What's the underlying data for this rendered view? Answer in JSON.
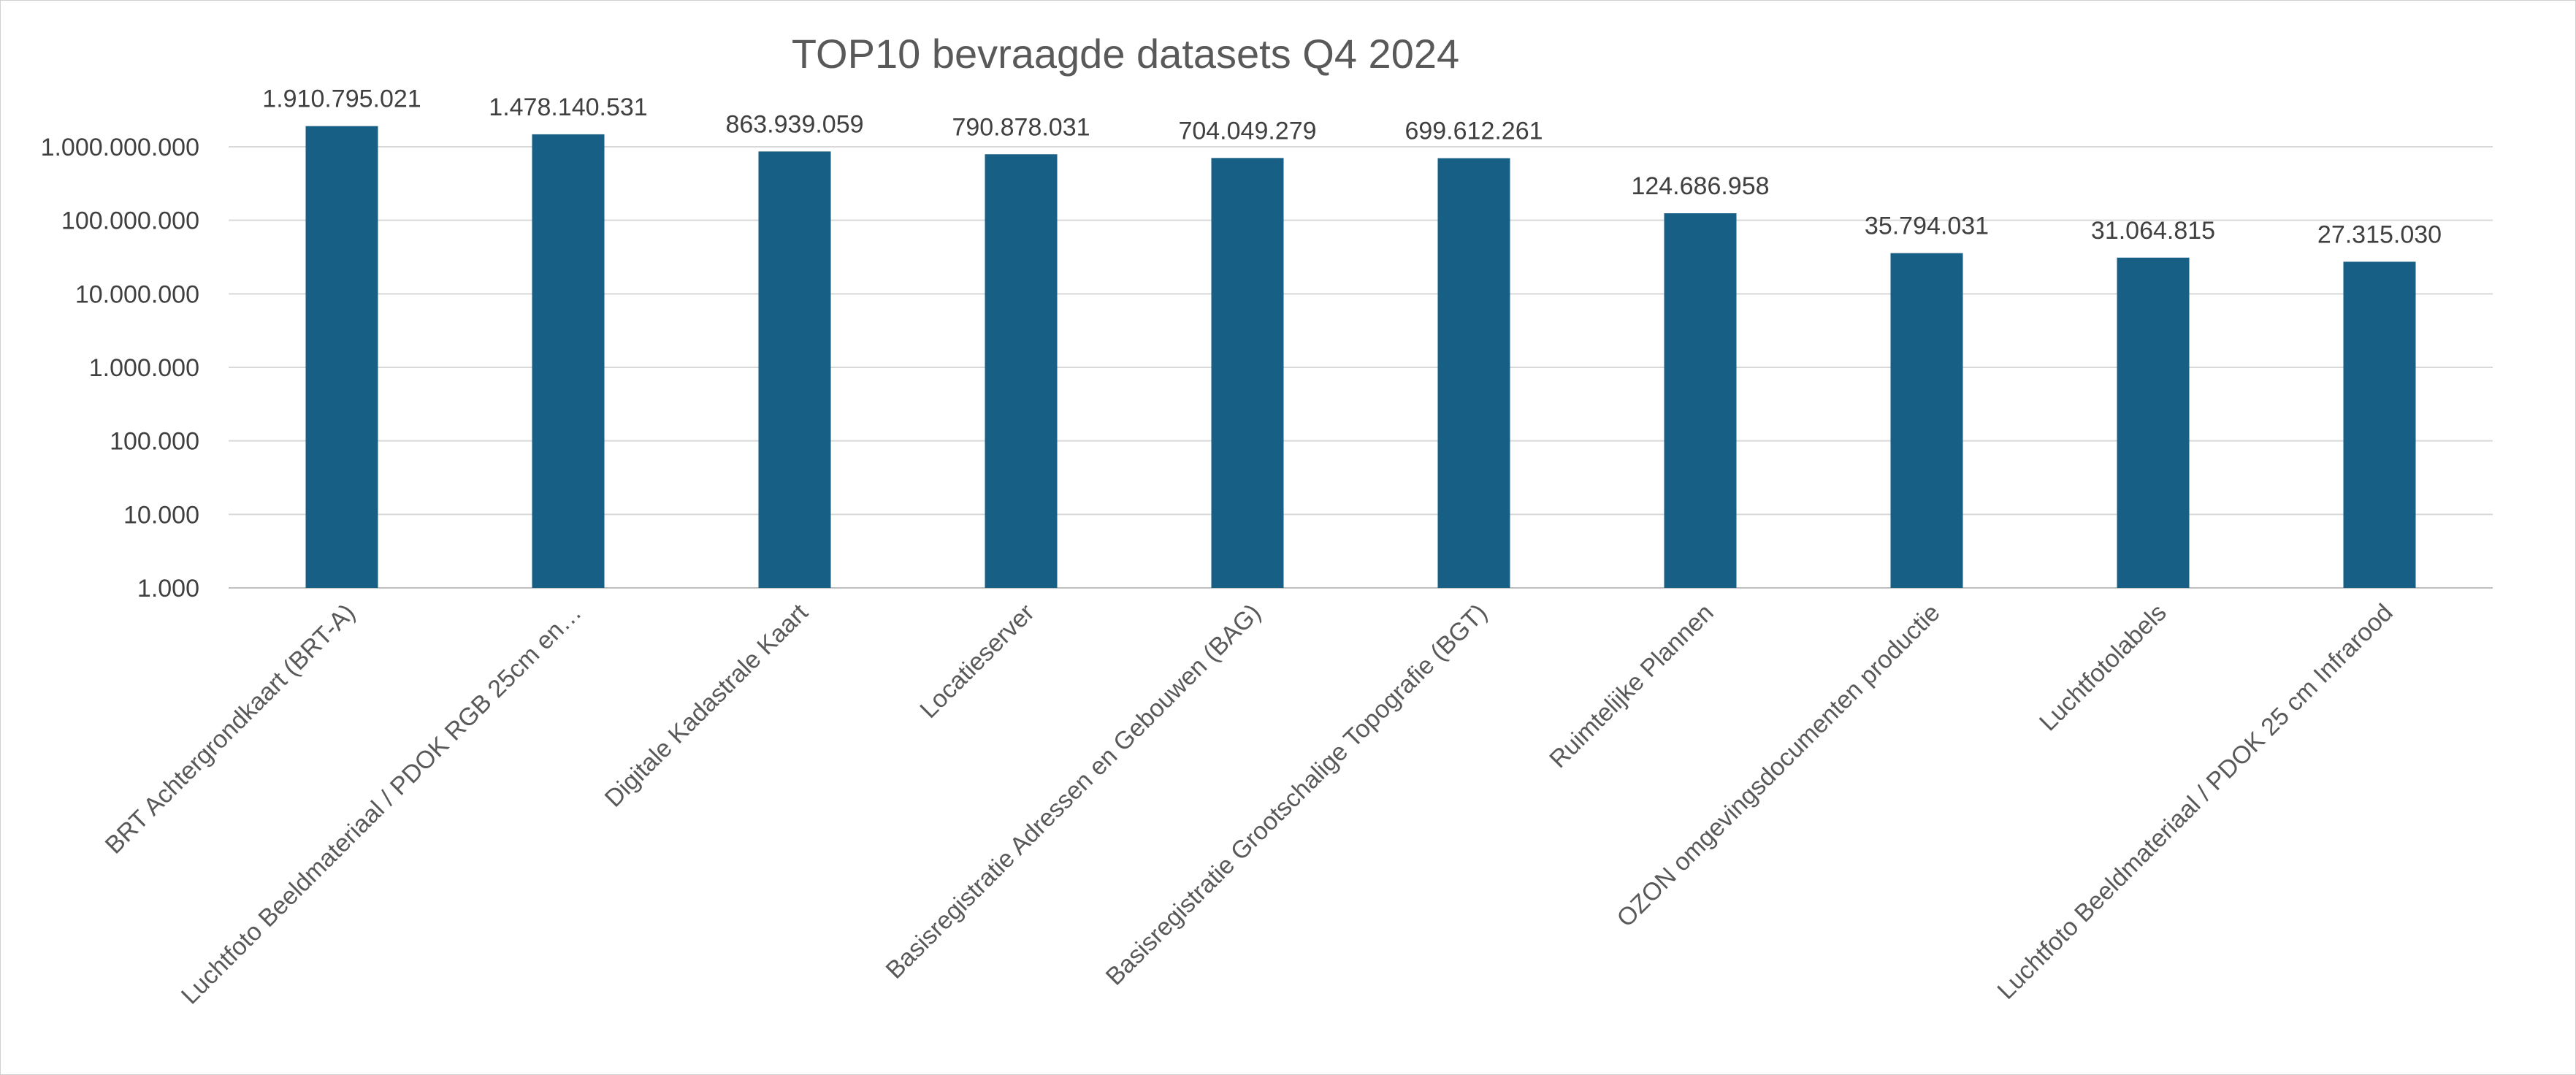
{
  "chart_data": {
    "type": "bar",
    "title": "TOP10 bevraagde datasets Q4 2024",
    "xlabel": "",
    "ylabel": "",
    "yscale": "log",
    "ylim": [
      1000,
      1000000000
    ],
    "yticks": [
      1000,
      10000,
      100000,
      1000000,
      10000000,
      100000000,
      1000000000
    ],
    "ytick_labels": [
      "1.000",
      "10.000",
      "100.000",
      "1.000.000",
      "10.000.000",
      "100.000.000",
      "1.000.000.000"
    ],
    "grid": true,
    "legend": "none",
    "bar_color": "#175f84",
    "categories": [
      "BRT Achtergrondkaart (BRT-A)",
      "Luchtfoto Beeldmateriaal / PDOK RGB 25cm en…",
      "Digitale Kadastrale Kaart",
      "Locatieserver",
      "Basisregistratie Adressen en Gebouwen (BAG)",
      "Basisregistratie Grootschalige Topografie (BGT)",
      "Ruimtelijke Plannen",
      "OZON omgevingsdocumenten productie",
      "Luchtfotolabels",
      "Luchtfoto Beeldmateriaal / PDOK 25 cm Infrarood"
    ],
    "values": [
      1910795021,
      1478140531,
      863939059,
      790878031,
      704049279,
      699612261,
      124686958,
      35794031,
      31064815,
      27315030
    ],
    "data_labels": [
      "1.910.795.021",
      "1.478.140.531",
      "863.939.059",
      "790.878.031",
      "704.049.279",
      "699.612.261",
      "124.686.958",
      "35.794.031",
      "31.064.815",
      "27.315.030"
    ]
  }
}
